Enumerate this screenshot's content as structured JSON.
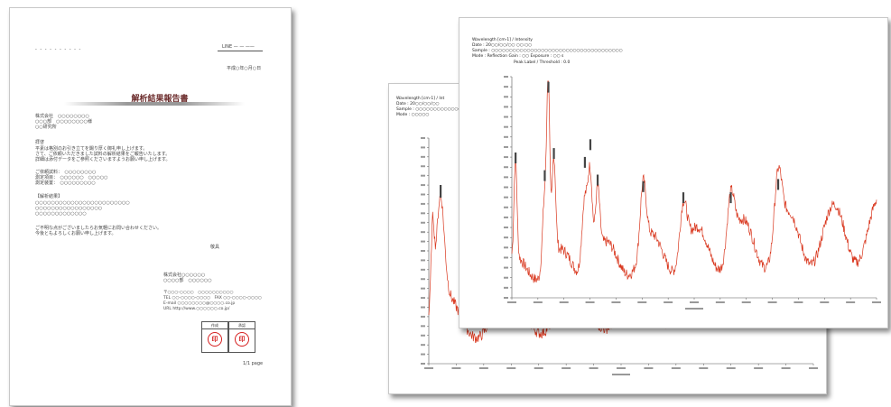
{
  "report": {
    "title": "解析結果報告書",
    "header_lines": [
      "- - - - - - - - - -",
      "LINE  — —  ——",
      "平成○年○月○日"
    ],
    "addressee": [
      "株式会社　○○○○○○○○",
      "○○○部　○○○○○○○○様",
      "○○研究所"
    ],
    "intro_label": "拝啓",
    "intro_lines": [
      "平素は格別のお引き立てを賜り厚く御礼申し上げます。",
      "さて、ご依頼いただきました試料の解析結果をご報告いたします。",
      "詳細は添付データをご参照くださいますようお願い申し上げます。"
    ],
    "sample_lines": [
      "ご依頼試料：　○○○○○○○○",
      "測定項目：　○○○○○○　○○○○○",
      "測定装置：　○○○○○○○○○"
    ],
    "result_label": "【解析結果】",
    "result_lines": [
      "○○○○○○○○○○○○○○○○○○○○○○○○",
      "○○○○○○○○○○○○○○○○○",
      "○○○○○○○○○○○○○"
    ],
    "closing_lines": [
      "ご不明な点がございましたらお気軽にお問い合わせください。",
      "今後ともよろしくお願い申し上げます。"
    ],
    "keigu": "敬具",
    "company_lines": [
      "株式会社○○○○○○",
      "○○○○部　○○○○○○",
      "〒○○○-○○○○　○○○○○○○○○○",
      "TEL ○○-○○○○-○○○○　FAX ○○-○○○○-○○○○",
      "E-mail ○○○○○○○○@○○○○.co.jp",
      "URL http://www.○○○○○○.co.jp/"
    ],
    "seal_labels": [
      "作成",
      "承認"
    ],
    "seal_marks": [
      "印",
      "印"
    ],
    "page_no": "1/1 page"
  },
  "chart_front": {
    "header_lines": [
      "Wavelength [cm-1] / Intensity",
      "Date : 20○○/○○/○○  ○○:○○",
      "Sample : ○○○○○○○○○○○○○○○○○○○○○○○○○○○○○○○○○○○○○",
      "Mode : Reflection  Gain : ○○  Exposure : ○○ s"
    ],
    "note": "Peak Label  / Threshold : 0.0"
  },
  "chart_back": {
    "header_lines": [
      "Wavelength [cm-1] / Int",
      "Date : 20○○/○○/○○",
      "Sample : ○○○○○○○○○○○○○○○○",
      "Mode : ○○○○○"
    ]
  },
  "colors": {
    "spectrum": "#d9371e",
    "seal": "#d62020"
  }
}
